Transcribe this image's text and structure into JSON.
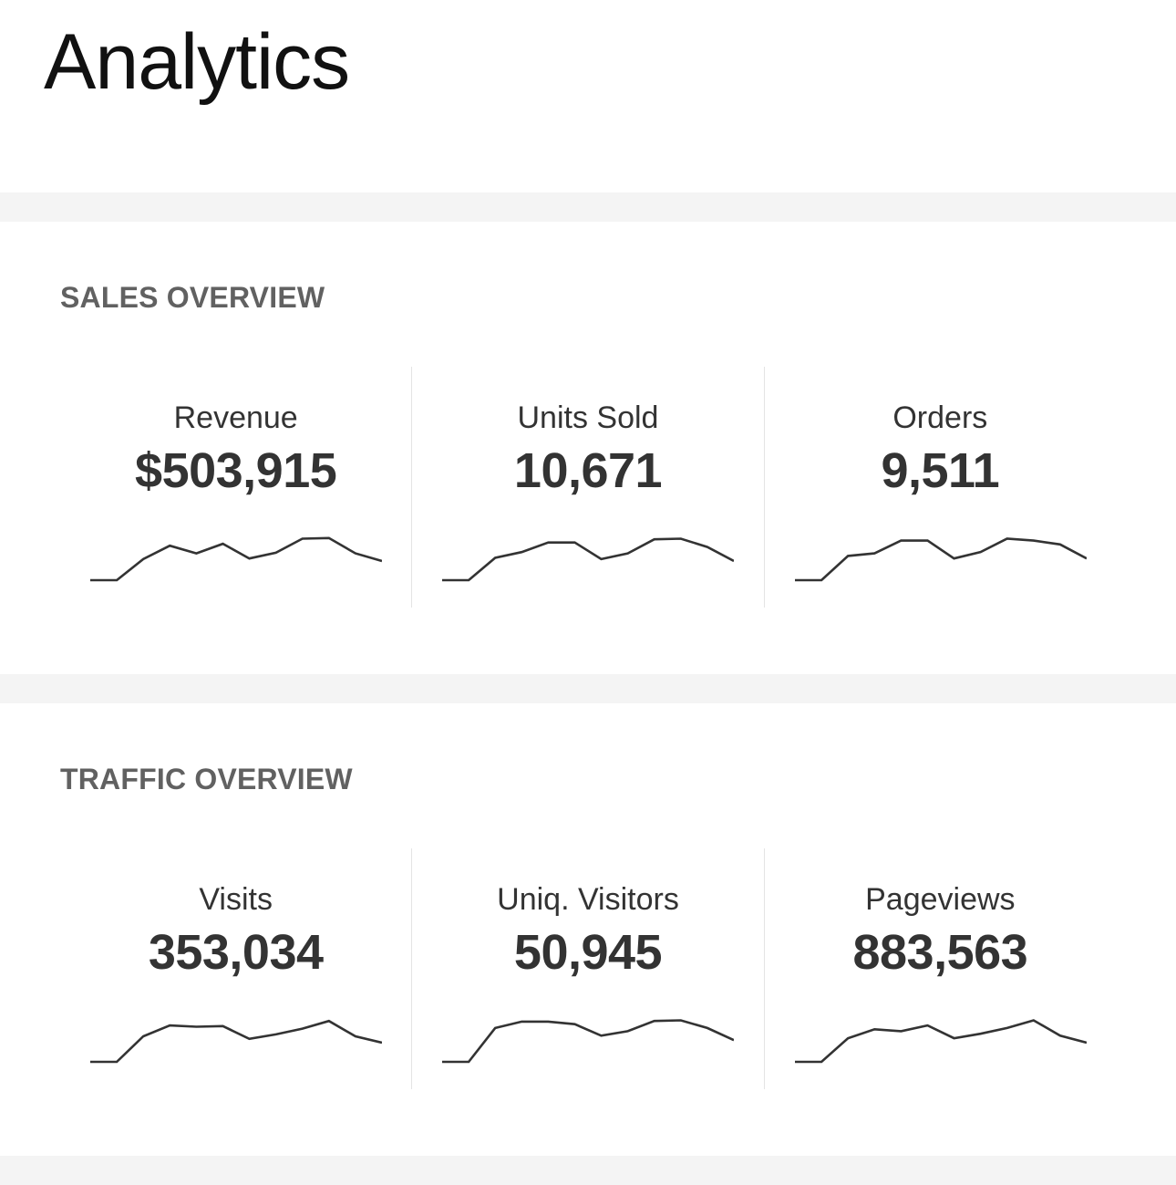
{
  "page": {
    "title": "Analytics"
  },
  "sections": [
    {
      "title": "SALES OVERVIEW",
      "metrics": [
        {
          "label": "Revenue",
          "value": "$503,915",
          "trend": [
            0,
            0,
            33,
            54,
            42,
            57,
            34,
            43,
            65,
            66,
            42,
            30
          ]
        },
        {
          "label": "Units Sold",
          "value": "10,671",
          "trend": [
            0,
            0,
            35,
            44,
            59,
            59,
            33,
            42,
            64,
            65,
            52,
            30
          ]
        },
        {
          "label": "Orders",
          "value": "9,511",
          "trend": [
            0,
            0,
            38,
            42,
            62,
            62,
            34,
            44,
            65,
            62,
            56,
            34
          ]
        }
      ]
    },
    {
      "title": "TRAFFIC OVERVIEW",
      "metrics": [
        {
          "label": "Visits",
          "value": "353,034",
          "trend": [
            0,
            0,
            40,
            57,
            55,
            56,
            36,
            43,
            52,
            64,
            40,
            30
          ]
        },
        {
          "label": "Uniq. Visitors",
          "value": "50,945",
          "trend": [
            0,
            0,
            53,
            63,
            63,
            59,
            41,
            48,
            64,
            65,
            53,
            34
          ]
        },
        {
          "label": "Pageviews",
          "value": "883,563",
          "trend": [
            0,
            0,
            37,
            51,
            48,
            57,
            37,
            44,
            53,
            65,
            41,
            30
          ]
        }
      ]
    }
  ]
}
